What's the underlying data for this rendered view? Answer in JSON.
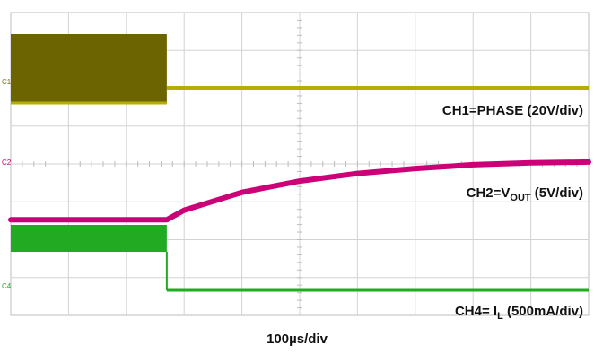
{
  "chart_data": {
    "type": "line",
    "title": "",
    "xlabel": "100µs/div",
    "ylabel": "",
    "grid": true,
    "x_range_us": [
      0,
      1000
    ],
    "divisions": {
      "x": 10,
      "y": 8
    },
    "step_time_us": 270,
    "channels": [
      {
        "id": "C1",
        "marker": "C1",
        "label": "CH1=PHASE (20V/div)",
        "color": "#7a7300",
        "fill_color": "#6b6400",
        "line_color": "#b5ad00",
        "scale": "20V/div",
        "description_values": {
          "switching_div": [
            0.0,
            4.0
          ],
          "after_step_div": 0.0
        }
      },
      {
        "id": "C2",
        "marker": "C2",
        "label_main": "CH2=V",
        "label_sub": "OUT",
        "label_tail": " (5V/div)",
        "color": "#cc0077",
        "scale": "5V/div",
        "x_us": [
          0,
          270,
          300,
          400,
          500,
          600,
          700,
          800,
          900,
          1000
        ],
        "y_div": [
          -1.4,
          -1.4,
          -1.15,
          -0.68,
          -0.38,
          -0.18,
          -0.05,
          0.05,
          0.1,
          0.12
        ]
      },
      {
        "id": "C4",
        "marker": "C4",
        "label_main": "CH4= I",
        "label_sub": "L",
        "label_tail": " (500mA/div)",
        "color": "#22aa22",
        "fill_color": "#22aa22",
        "scale": "500mA/div",
        "description_values": {
          "before_step_div": [
            0.0,
            1.0
          ],
          "after_step_div": 0.0
        }
      }
    ]
  }
}
